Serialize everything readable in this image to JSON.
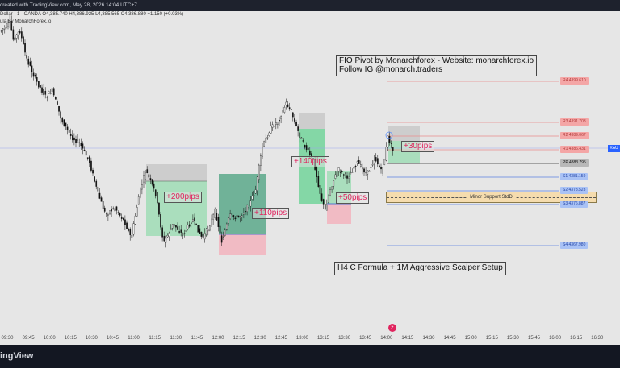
{
  "header": {
    "watermark_text": "created with TradingView.com, May 28, 2026 14:04 UTC+7",
    "symbol_text": "Dollar · 1 · OANDA  O4,385.740  H4,386.925  L4,385.565  C4,386.880  +1.150 (+0.03%)",
    "indicator_text": "ula By MonarchForex.io"
  },
  "annotations": {
    "info_title_line1": "FIO Pivot by Monarchforex - Website: monarchforex.io",
    "info_title_line2": "Follow IG @monarch.traders",
    "setup_text": "H4 C Formula + 1M Aggressive Scalper Setup",
    "minor_support": "Minor Support StdD",
    "pips": [
      "+200pips",
      "+110pips",
      "+140pips",
      "+50pips",
      "+30pips"
    ]
  },
  "levels": [
    {
      "label": "R4 4399.610",
      "color": "#f4a6a6",
      "text_color": "#b23a3a"
    },
    {
      "label": "R3 4391.703",
      "color": "#f4a6a6",
      "text_color": "#b23a3a"
    },
    {
      "label": "R2 4389.067",
      "color": "#f4a6a6",
      "text_color": "#b23a3a"
    },
    {
      "label": "R1 4386.431",
      "color": "#f4a6a6",
      "text_color": "#b23a3a"
    },
    {
      "label": "PP 4383.795",
      "color": "#b8b8b8",
      "text_color": "#111111"
    },
    {
      "label": "S1 4381.159",
      "color": "#a9c2f5",
      "text_color": "#2748a8"
    },
    {
      "label": "S2 4378.523",
      "color": "#a9c2f5",
      "text_color": "#2748a8"
    },
    {
      "label": "S3 4376.887",
      "color": "#a9c2f5",
      "text_color": "#2748a8"
    },
    {
      "label": "S4 4367.980",
      "color": "#a9c2f5",
      "text_color": "#2748a8"
    }
  ],
  "right_badge": "XAU",
  "time_axis": [
    "09:30",
    "09:45",
    "10:00",
    "10:15",
    "10:30",
    "10:45",
    "11:00",
    "11:15",
    "11:30",
    "11:45",
    "12:00",
    "12:15",
    "12:30",
    "12:45",
    "13:00",
    "13:15",
    "13:30",
    "13:45",
    "14:00",
    "14:15",
    "14:30",
    "14:45",
    "15:00",
    "15:15",
    "15:30",
    "15:45",
    "16:00",
    "16:15",
    "16:30"
  ],
  "footer": {
    "brand": "ingView"
  },
  "colors": {
    "bull": "#111111",
    "bear": "#111111",
    "profit": "#66c98f",
    "loss": "#f09aa8",
    "accent": "#2962ff"
  }
}
